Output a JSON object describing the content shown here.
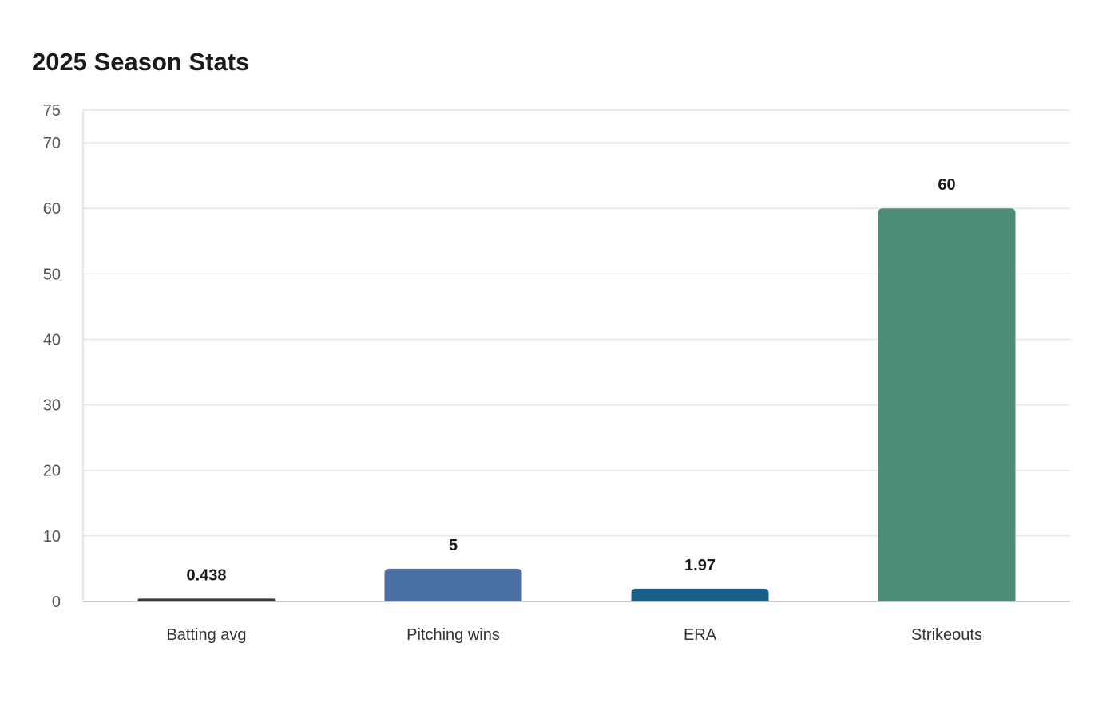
{
  "chart_data": {
    "type": "bar",
    "title": "2025 Season Stats",
    "xlabel": "",
    "ylabel": "",
    "categories": [
      "Batting avg",
      "Pitching wins",
      "ERA",
      "Strikeouts"
    ],
    "values": [
      0.438,
      5,
      1.97,
      60
    ],
    "value_labels": [
      "0.438",
      "5",
      "1.97",
      "60"
    ],
    "colors": [
      "#3a3a3a",
      "#4a6fa5",
      "#1b5e87",
      "#4e8c7a"
    ],
    "ylim": [
      0,
      75
    ],
    "yticks": [
      0,
      10,
      20,
      30,
      40,
      50,
      60,
      70,
      75
    ],
    "grid": true,
    "legend": "none"
  }
}
